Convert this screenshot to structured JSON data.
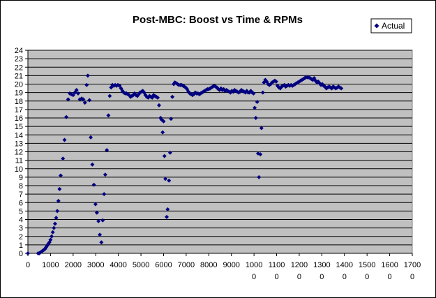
{
  "chart_data": {
    "type": "scatter",
    "title": "Post-MBC: Boost vs Time & RPMs",
    "xlabel": "",
    "ylabel": "",
    "xlim": [
      0,
      17000
    ],
    "ylim": [
      0,
      24
    ],
    "grid": true,
    "legend": "top-right",
    "x_ticks": [
      {
        "value": 0,
        "label": "0",
        "sub": ""
      },
      {
        "value": 1000,
        "label": "1000",
        "sub": ""
      },
      {
        "value": 2000,
        "label": "2000",
        "sub": ""
      },
      {
        "value": 3000,
        "label": "3000",
        "sub": ""
      },
      {
        "value": 4000,
        "label": "4000",
        "sub": ""
      },
      {
        "value": 5000,
        "label": "5000",
        "sub": ""
      },
      {
        "value": 6000,
        "label": "6000",
        "sub": ""
      },
      {
        "value": 7000,
        "label": "7000",
        "sub": ""
      },
      {
        "value": 8000,
        "label": "8000",
        "sub": ""
      },
      {
        "value": 9000,
        "label": "9000",
        "sub": ""
      },
      {
        "value": 10000,
        "label": "1000",
        "sub": "0"
      },
      {
        "value": 11000,
        "label": "1100",
        "sub": "0"
      },
      {
        "value": 12000,
        "label": "1200",
        "sub": "0"
      },
      {
        "value": 13000,
        "label": "1300",
        "sub": "0"
      },
      {
        "value": 14000,
        "label": "1400",
        "sub": "0"
      },
      {
        "value": 15000,
        "label": "1500",
        "sub": "0"
      },
      {
        "value": 16000,
        "label": "1600",
        "sub": "0"
      },
      {
        "value": 17000,
        "label": "1700",
        "sub": "0"
      }
    ],
    "y_ticks": [
      0,
      1,
      2,
      3,
      4,
      5,
      6,
      7,
      8,
      9,
      10,
      11,
      12,
      13,
      14,
      15,
      16,
      17,
      18,
      19,
      20,
      21,
      22,
      23,
      24
    ],
    "colors": {
      "plot_bg": "#c0c0c0",
      "marker": "#000080",
      "grid": "#000000"
    },
    "series": [
      {
        "name": "Actual",
        "marker": "diamond",
        "points": [
          [
            0,
            0
          ],
          [
            450,
            0
          ],
          [
            500,
            0
          ],
          [
            550,
            0.1
          ],
          [
            600,
            0.2
          ],
          [
            650,
            0.3
          ],
          [
            700,
            0.4
          ],
          [
            750,
            0.5
          ],
          [
            800,
            0.7
          ],
          [
            850,
            0.9
          ],
          [
            900,
            1.1
          ],
          [
            950,
            1.3
          ],
          [
            1000,
            1.6
          ],
          [
            1050,
            2.0
          ],
          [
            1100,
            2.5
          ],
          [
            1150,
            3.0
          ],
          [
            1200,
            3.5
          ],
          [
            1250,
            4.2
          ],
          [
            1300,
            5.0
          ],
          [
            1350,
            6.2
          ],
          [
            1400,
            7.6
          ],
          [
            1450,
            9.2
          ],
          [
            1550,
            11.2
          ],
          [
            1620,
            13.4
          ],
          [
            1700,
            16.1
          ],
          [
            1780,
            18.2
          ],
          [
            1850,
            18.9
          ],
          [
            1920,
            18.8
          ],
          [
            2000,
            18.7
          ],
          [
            2080,
            19.0
          ],
          [
            2150,
            19.3
          ],
          [
            2220,
            18.9
          ],
          [
            2300,
            18.2
          ],
          [
            2380,
            18.3
          ],
          [
            2450,
            18.2
          ],
          [
            2520,
            17.8
          ],
          [
            2600,
            19.9
          ],
          [
            2650,
            21.0
          ],
          [
            2720,
            18.1
          ],
          [
            2780,
            13.7
          ],
          [
            2850,
            10.5
          ],
          [
            2920,
            8.1
          ],
          [
            2990,
            5.8
          ],
          [
            3050,
            4.8
          ],
          [
            3120,
            3.8
          ],
          [
            3180,
            2.2
          ],
          [
            3250,
            1.3
          ],
          [
            3310,
            3.9
          ],
          [
            3370,
            7.0
          ],
          [
            3420,
            9.3
          ],
          [
            3490,
            12.2
          ],
          [
            3560,
            16.3
          ],
          [
            3620,
            18.6
          ],
          [
            3680,
            19.6
          ],
          [
            3740,
            19.9
          ],
          [
            3800,
            19.8
          ],
          [
            3860,
            19.9
          ],
          [
            3920,
            19.8
          ],
          [
            3980,
            19.9
          ],
          [
            4050,
            19.8
          ],
          [
            4120,
            19.5
          ],
          [
            4180,
            19.2
          ],
          [
            4240,
            19.0
          ],
          [
            4300,
            18.9
          ],
          [
            4360,
            18.9
          ],
          [
            4420,
            18.8
          ],
          [
            4480,
            18.7
          ],
          [
            4540,
            18.5
          ],
          [
            4600,
            18.6
          ],
          [
            4660,
            18.7
          ],
          [
            4720,
            18.9
          ],
          [
            4780,
            18.7
          ],
          [
            4840,
            18.6
          ],
          [
            4900,
            18.8
          ],
          [
            4960,
            19.0
          ],
          [
            5020,
            19.1
          ],
          [
            5080,
            19.2
          ],
          [
            5140,
            19.0
          ],
          [
            5200,
            18.7
          ],
          [
            5260,
            18.5
          ],
          [
            5320,
            18.4
          ],
          [
            5380,
            18.6
          ],
          [
            5440,
            18.5
          ],
          [
            5500,
            18.4
          ],
          [
            5560,
            18.7
          ],
          [
            5620,
            18.6
          ],
          [
            5680,
            18.5
          ],
          [
            5740,
            18.4
          ],
          [
            5800,
            17.5
          ],
          [
            5870,
            16.0
          ],
          [
            5910,
            15.8
          ],
          [
            5960,
            14.3
          ],
          [
            6000,
            15.6
          ],
          [
            6040,
            11.5
          ],
          [
            6080,
            8.8
          ],
          [
            6140,
            4.3
          ],
          [
            6180,
            5.2
          ],
          [
            6240,
            8.6
          ],
          [
            6290,
            11.9
          ],
          [
            6330,
            15.9
          ],
          [
            6390,
            18.5
          ],
          [
            6450,
            20.0
          ],
          [
            6500,
            20.2
          ],
          [
            6560,
            20.1
          ],
          [
            6620,
            20.0
          ],
          [
            6680,
            19.9
          ],
          [
            6740,
            19.9
          ],
          [
            6800,
            19.9
          ],
          [
            6860,
            19.8
          ],
          [
            6920,
            19.7
          ],
          [
            6980,
            19.6
          ],
          [
            7040,
            19.4
          ],
          [
            7100,
            19.1
          ],
          [
            7160,
            18.9
          ],
          [
            7220,
            18.8
          ],
          [
            7280,
            18.7
          ],
          [
            7340,
            18.8
          ],
          [
            7400,
            19.0
          ],
          [
            7460,
            18.9
          ],
          [
            7520,
            18.9
          ],
          [
            7580,
            18.8
          ],
          [
            7640,
            18.9
          ],
          [
            7700,
            19.0
          ],
          [
            7760,
            19.1
          ],
          [
            7820,
            19.2
          ],
          [
            7880,
            19.3
          ],
          [
            7940,
            19.4
          ],
          [
            8000,
            19.4
          ],
          [
            8060,
            19.5
          ],
          [
            8120,
            19.6
          ],
          [
            8180,
            19.7
          ],
          [
            8240,
            19.8
          ],
          [
            8300,
            19.7
          ],
          [
            8360,
            19.6
          ],
          [
            8420,
            19.4
          ],
          [
            8480,
            19.3
          ],
          [
            8540,
            19.5
          ],
          [
            8600,
            19.3
          ],
          [
            8660,
            19.4
          ],
          [
            8720,
            19.2
          ],
          [
            8780,
            19.3
          ],
          [
            8840,
            19.2
          ],
          [
            8900,
            19.1
          ],
          [
            8960,
            19.0
          ],
          [
            9020,
            19.2
          ],
          [
            9080,
            19.1
          ],
          [
            9140,
            19.3
          ],
          [
            9200,
            19.2
          ],
          [
            9260,
            19.1
          ],
          [
            9320,
            19.0
          ],
          [
            9380,
            19.1
          ],
          [
            9440,
            19.3
          ],
          [
            9500,
            19.2
          ],
          [
            9560,
            19.1
          ],
          [
            9620,
            19.0
          ],
          [
            9680,
            19.2
          ],
          [
            9740,
            19.0
          ],
          [
            9800,
            19.0
          ],
          [
            9860,
            19.2
          ],
          [
            9920,
            19.0
          ],
          [
            9980,
            18.9
          ],
          [
            10030,
            17.2
          ],
          [
            10080,
            16.0
          ],
          [
            10140,
            17.9
          ],
          [
            10180,
            11.8
          ],
          [
            10220,
            9.0
          ],
          [
            10280,
            11.7
          ],
          [
            10330,
            14.8
          ],
          [
            10390,
            19.0
          ],
          [
            10440,
            20.2
          ],
          [
            10500,
            20.5
          ],
          [
            10560,
            20.3
          ],
          [
            10620,
            20.0
          ],
          [
            10680,
            19.9
          ],
          [
            10740,
            20.0
          ],
          [
            10800,
            20.2
          ],
          [
            10860,
            20.3
          ],
          [
            10920,
            20.4
          ],
          [
            10980,
            20.3
          ],
          [
            11040,
            19.8
          ],
          [
            11100,
            19.6
          ],
          [
            11160,
            19.5
          ],
          [
            11220,
            19.7
          ],
          [
            11280,
            19.8
          ],
          [
            11340,
            19.9
          ],
          [
            11400,
            19.7
          ],
          [
            11460,
            19.8
          ],
          [
            11520,
            19.9
          ],
          [
            11580,
            19.8
          ],
          [
            11640,
            19.9
          ],
          [
            11700,
            19.8
          ],
          [
            11760,
            19.9
          ],
          [
            11820,
            20.0
          ],
          [
            11880,
            20.1
          ],
          [
            11940,
            20.2
          ],
          [
            12000,
            20.3
          ],
          [
            12060,
            20.4
          ],
          [
            12120,
            20.5
          ],
          [
            12180,
            20.6
          ],
          [
            12240,
            20.7
          ],
          [
            12300,
            20.8
          ],
          [
            12360,
            20.8
          ],
          [
            12420,
            20.8
          ],
          [
            12480,
            20.7
          ],
          [
            12540,
            20.6
          ],
          [
            12600,
            20.5
          ],
          [
            12660,
            20.7
          ],
          [
            12720,
            20.4
          ],
          [
            12780,
            20.2
          ],
          [
            12840,
            20.3
          ],
          [
            12900,
            20.1
          ],
          [
            12960,
            19.9
          ],
          [
            13020,
            20.0
          ],
          [
            13080,
            19.8
          ],
          [
            13140,
            19.7
          ],
          [
            13200,
            19.5
          ],
          [
            13260,
            19.6
          ],
          [
            13320,
            19.7
          ],
          [
            13380,
            19.6
          ],
          [
            13440,
            19.5
          ],
          [
            13500,
            19.7
          ],
          [
            13560,
            19.6
          ],
          [
            13620,
            19.5
          ],
          [
            13680,
            19.6
          ],
          [
            13740,
            19.7
          ],
          [
            13800,
            19.6
          ],
          [
            13860,
            19.5
          ]
        ]
      }
    ]
  }
}
